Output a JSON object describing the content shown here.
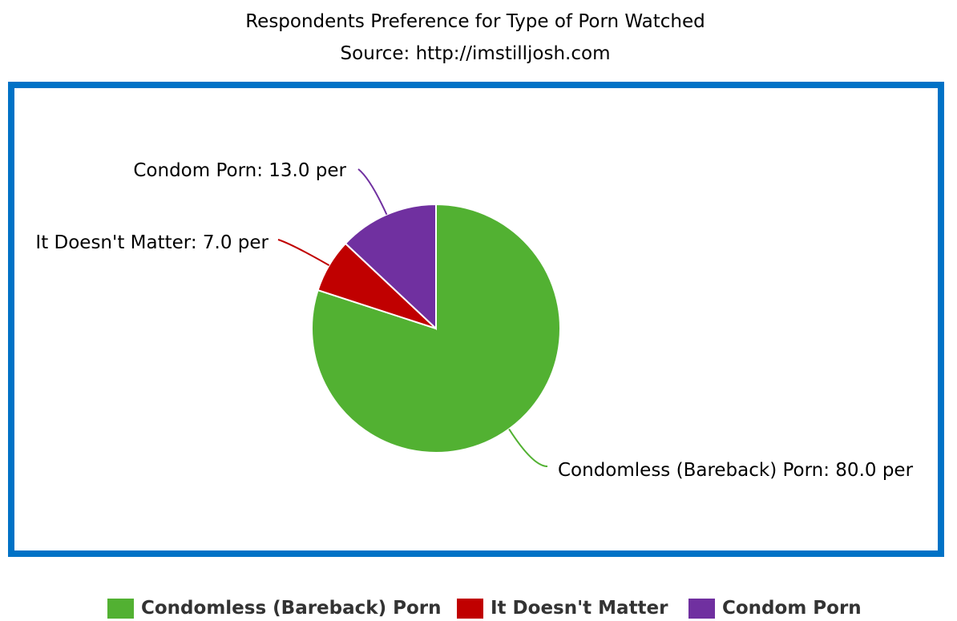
{
  "chart_data": {
    "type": "pie",
    "title": "Respondents Preference for Type of Porn Watched",
    "subtitle": "Source: http://imstilljosh.com",
    "start_angle_deg": -90,
    "slices": [
      {
        "name": "Condomless (Bareback) Porn",
        "value": 80.0,
        "color": "#52b132",
        "label": "Condomless (Bareback) Porn: 80.0 per"
      },
      {
        "name": "It Doesn't Matter",
        "value": 7.0,
        "color": "#c00000",
        "label": "It Doesn't Matter: 7.0 per"
      },
      {
        "name": "Condom Porn",
        "value": 13.0,
        "color": "#7030a0",
        "label": "Condom Porn: 13.0 per"
      }
    ],
    "legend_position": "bottom"
  },
  "colors": {
    "frame_border": "#0072c6"
  }
}
